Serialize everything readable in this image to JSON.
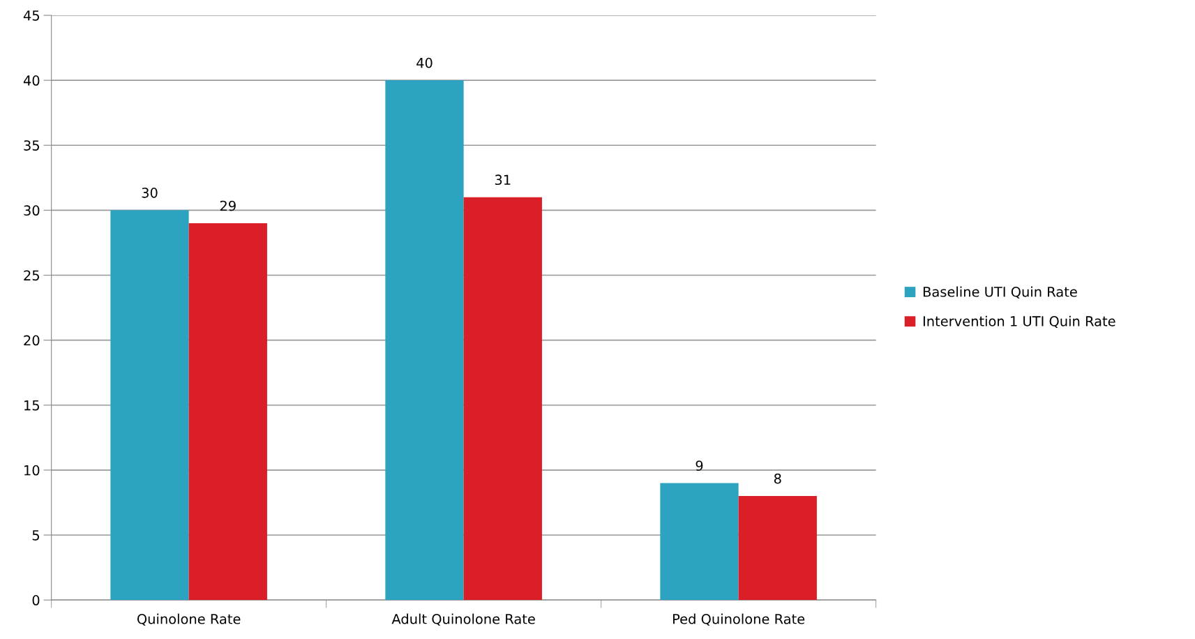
{
  "chart_data": {
    "type": "bar",
    "categories": [
      "Quinolone Rate",
      "Adult Quinolone Rate",
      "Ped Quinolone Rate"
    ],
    "series": [
      {
        "name": "Baseline UTI Quin Rate",
        "color": "#2ca3c0",
        "values": [
          30,
          40,
          9
        ]
      },
      {
        "name": "Intervention 1 UTI Quin Rate",
        "color": "#da1f28",
        "values": [
          29,
          31,
          8
        ]
      }
    ],
    "ylim": [
      0,
      45
    ],
    "yticks": [
      0,
      5,
      10,
      15,
      20,
      25,
      30,
      35,
      40,
      45
    ],
    "grid": "y",
    "legend": "right",
    "data_labels": true
  }
}
